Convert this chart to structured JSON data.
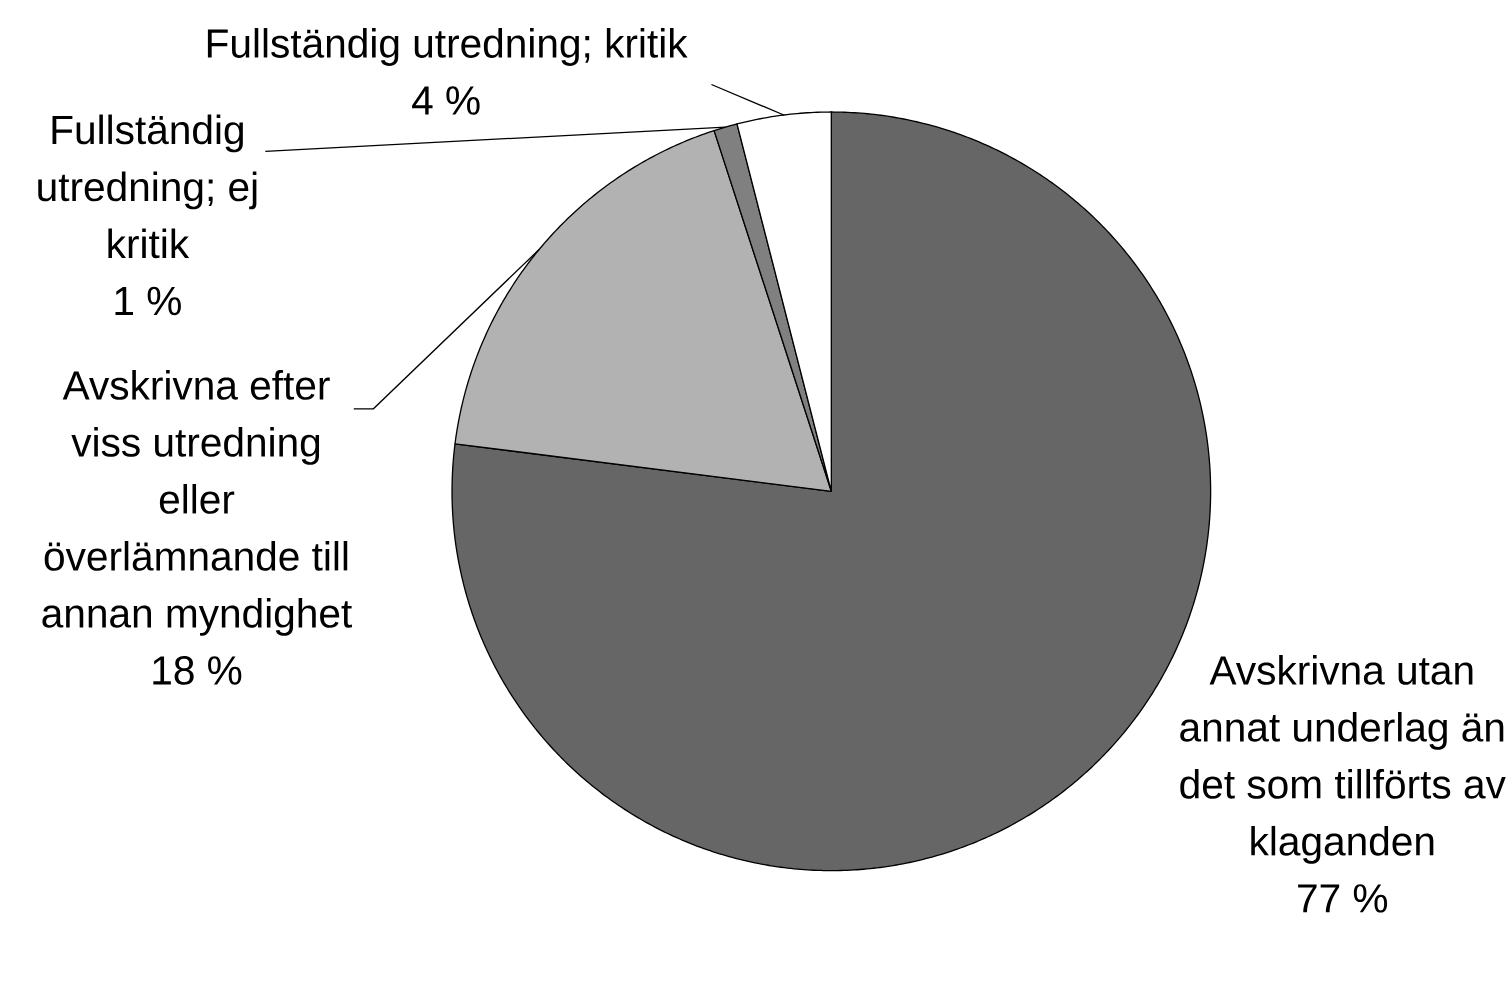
{
  "chart_data": {
    "type": "pie",
    "categories": [
      "Avskrivna utan annat underlag än det som tillförts av klaganden",
      "Avskrivna efter viss utredning eller överlämnande till annan myndighet",
      "Fullständig utredning; ej kritik",
      "Fullständig utredning; kritik"
    ],
    "values": [
      77,
      18,
      1,
      4
    ],
    "value_labels": [
      "77 %",
      "18 %",
      "1 %",
      "4 %"
    ],
    "colors": [
      "#666666",
      "#b2b2b2",
      "#808080",
      "#ffffff"
    ],
    "legend": false
  }
}
